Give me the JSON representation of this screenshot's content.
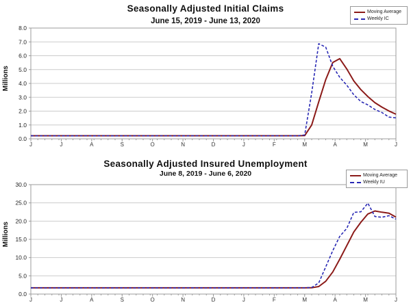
{
  "colors": {
    "moving_average": "#8b1a18",
    "weekly": "#2828b4",
    "grid": "#cbcbcb",
    "frame": "#9b9b9b",
    "tick_text": "#333333"
  },
  "chart_data": [
    {
      "type": "line",
      "title": "Seasonally Adjusted Initial Claims",
      "subtitle": "June 15, 2019 - June 13, 2020",
      "xlabel": "",
      "ylabel": "Millions",
      "ylim": [
        0,
        8
      ],
      "yticks": [
        0,
        1,
        2,
        3,
        4,
        5,
        6,
        7,
        8
      ],
      "ytick_labels": [
        "0.0",
        "1.0",
        "2.0",
        "3.0",
        "4.0",
        "5.0",
        "6.0",
        "7.0",
        "8.0"
      ],
      "xtick_labels": [
        "J",
        "J",
        "A",
        "S",
        "O",
        "N",
        "D",
        "J",
        "F",
        "M",
        "A",
        "M",
        "J"
      ],
      "grid": true,
      "legend_position": "top-right",
      "series": [
        {
          "name": "Moving Average",
          "color": "#8b1a18",
          "dash": false,
          "values": [
            0.22,
            0.22,
            0.22,
            0.22,
            0.22,
            0.22,
            0.22,
            0.22,
            0.22,
            0.22,
            0.22,
            0.22,
            0.22,
            0.22,
            0.22,
            0.22,
            0.22,
            0.22,
            0.22,
            0.22,
            0.22,
            0.22,
            0.22,
            0.22,
            0.22,
            0.22,
            0.22,
            0.22,
            0.22,
            0.22,
            0.22,
            0.22,
            0.22,
            0.22,
            0.22,
            0.22,
            0.22,
            0.22,
            0.22,
            0.23,
            1.0,
            2.67,
            4.27,
            5.51,
            5.79,
            5.04,
            4.18,
            3.55,
            3.05,
            2.61,
            2.29,
            2.01,
            1.78
          ]
        },
        {
          "name": "Weekly IC",
          "color": "#2828b4",
          "dash": true,
          "values": [
            0.22,
            0.21,
            0.22,
            0.22,
            0.21,
            0.22,
            0.21,
            0.22,
            0.22,
            0.21,
            0.22,
            0.22,
            0.21,
            0.22,
            0.21,
            0.22,
            0.22,
            0.21,
            0.22,
            0.22,
            0.21,
            0.22,
            0.21,
            0.22,
            0.22,
            0.21,
            0.22,
            0.22,
            0.21,
            0.22,
            0.21,
            0.22,
            0.22,
            0.21,
            0.22,
            0.22,
            0.21,
            0.22,
            0.21,
            0.28,
            3.31,
            6.87,
            6.62,
            5.24,
            4.44,
            3.87,
            3.18,
            2.69,
            2.45,
            2.12,
            1.9,
            1.57,
            1.51
          ]
        }
      ]
    },
    {
      "type": "line",
      "title": "Seasonally Adjusted Insured Unemployment",
      "subtitle": "June 8, 2019 - June 6, 2020",
      "xlabel": "",
      "ylabel": "Millions",
      "ylim": [
        0,
        30
      ],
      "yticks": [
        0,
        5,
        10,
        15,
        20,
        25,
        30
      ],
      "ytick_labels": [
        "0.0",
        "5.0",
        "10.0",
        "15.0",
        "20.0",
        "25.0",
        "30.0"
      ],
      "xtick_labels": [
        "J",
        "J",
        "A",
        "S",
        "O",
        "N",
        "D",
        "J",
        "F",
        "M",
        "A",
        "M",
        "J"
      ],
      "grid": true,
      "legend_position": "top-right",
      "series": [
        {
          "name": "Moving Average",
          "color": "#8b1a18",
          "dash": false,
          "values": [
            1.7,
            1.7,
            1.7,
            1.7,
            1.7,
            1.7,
            1.7,
            1.7,
            1.7,
            1.7,
            1.7,
            1.7,
            1.7,
            1.7,
            1.7,
            1.7,
            1.7,
            1.7,
            1.7,
            1.7,
            1.7,
            1.7,
            1.7,
            1.7,
            1.7,
            1.7,
            1.7,
            1.7,
            1.7,
            1.7,
            1.7,
            1.7,
            1.7,
            1.7,
            1.7,
            1.7,
            1.7,
            1.7,
            1.7,
            1.7,
            1.73,
            2.07,
            3.5,
            6.06,
            9.56,
            13.3,
            17.03,
            19.69,
            21.96,
            22.78,
            22.45,
            22.18,
            21.09
          ]
        },
        {
          "name": "Weekly IU",
          "color": "#2828b4",
          "dash": true,
          "values": [
            1.7,
            1.72,
            1.7,
            1.69,
            1.71,
            1.7,
            1.68,
            1.7,
            1.72,
            1.7,
            1.69,
            1.7,
            1.71,
            1.7,
            1.69,
            1.7,
            1.72,
            1.7,
            1.7,
            1.69,
            1.71,
            1.7,
            1.7,
            1.72,
            1.7,
            1.69,
            1.7,
            1.71,
            1.7,
            1.7,
            1.69,
            1.72,
            1.7,
            1.7,
            1.71,
            1.7,
            1.69,
            1.7,
            1.72,
            1.73,
            1.8,
            3.06,
            7.45,
            11.91,
            15.82,
            18.01,
            22.38,
            22.55,
            24.91,
            21.27,
            21.05,
            21.49,
            20.54
          ]
        }
      ]
    }
  ]
}
